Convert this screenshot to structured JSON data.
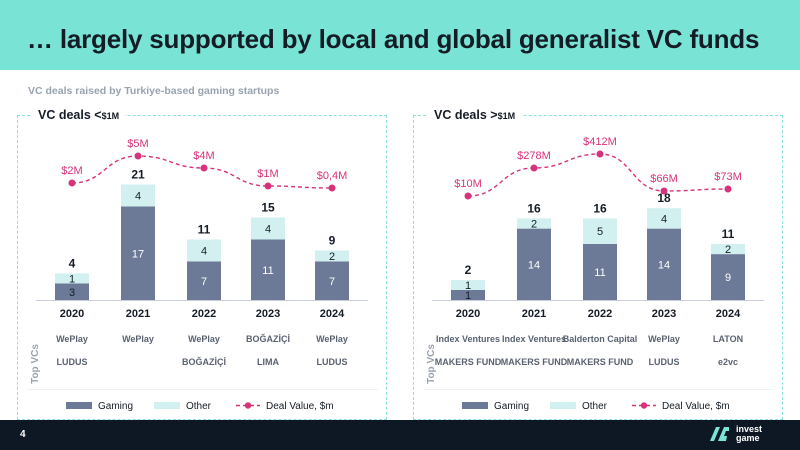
{
  "page": {
    "title": "… largely supported by local and global generalist VC funds",
    "subtitle": "VC deals raised by Turkiye-based gaming startups",
    "page_number": "4",
    "brand": "invest game"
  },
  "colors": {
    "header_bg": "#79e4d6",
    "gaming": "#6c7a98",
    "other": "#d2f0f0",
    "deal_line": "#d6337a",
    "footer_bg": "#0e1824"
  },
  "panels": [
    {
      "title_main": "VC deals <",
      "title_small": "$1M",
      "top_vcs_label": "Top VCs",
      "vc_logos": [
        [
          "WePlay",
          "LUDUS"
        ],
        [
          "WePlay"
        ],
        [
          "WePlay",
          "BOĞAZİÇİ"
        ],
        [
          "BOĞAZİÇİ",
          "LIMA"
        ],
        [
          "WePlay",
          "LUDUS"
        ]
      ],
      "legend": [
        "Gaming",
        "Other",
        "Deal Value, $m"
      ]
    },
    {
      "title_main": "VC deals >",
      "title_small": "$1M",
      "top_vcs_label": "Top VCs",
      "vc_logos": [
        [
          "Index Ventures",
          "MAKERS FUND"
        ],
        [
          "Index Ventures",
          "MAKERS FUND"
        ],
        [
          "Balderton Capital",
          "MAKERS FUND"
        ],
        [
          "WePlay",
          "LUDUS"
        ],
        [
          "LATON",
          "e2vc"
        ]
      ],
      "legend": [
        "Gaming",
        "Other",
        "Deal Value, $m"
      ]
    }
  ],
  "chart_data": [
    {
      "type": "bar",
      "title": "VC deals <$1M",
      "categories": [
        "2020",
        "2021",
        "2022",
        "2023",
        "2024"
      ],
      "series": [
        {
          "name": "Gaming",
          "values": [
            3,
            17,
            7,
            11,
            7
          ]
        },
        {
          "name": "Other",
          "values": [
            1,
            4,
            4,
            4,
            2
          ]
        }
      ],
      "totals": [
        4,
        21,
        11,
        15,
        9
      ],
      "line": {
        "name": "Deal Value, $m",
        "values": [
          2,
          5,
          4,
          1,
          0.4
        ],
        "labels": [
          "$2M",
          "$5M",
          "$4M",
          "$1M",
          "$0,4M"
        ]
      }
    },
    {
      "type": "bar",
      "title": "VC deals >$1M",
      "categories": [
        "2020",
        "2021",
        "2022",
        "2023",
        "2024"
      ],
      "series": [
        {
          "name": "Gaming",
          "values": [
            1,
            14,
            11,
            14,
            9
          ]
        },
        {
          "name": "Other",
          "values": [
            1,
            2,
            5,
            4,
            2
          ]
        }
      ],
      "totals": [
        2,
        16,
        16,
        18,
        11
      ],
      "line": {
        "name": "Deal Value, $m",
        "values": [
          10,
          278,
          412,
          66,
          73
        ],
        "labels": [
          "$10M",
          "$278M",
          "$412M",
          "$66M",
          "$73M"
        ]
      }
    }
  ]
}
